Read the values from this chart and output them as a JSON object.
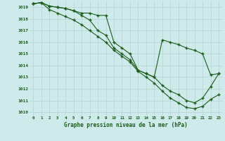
{
  "title": "Graphe pression niveau de la mer (hPa)",
  "background_color": "#ceeaea",
  "grid_color": "#b8d8d8",
  "line_color": "#1a5c1a",
  "x_labels": [
    "0",
    "1",
    "2",
    "3",
    "4",
    "5",
    "6",
    "7",
    "8",
    "9",
    "10",
    "11",
    "12",
    "13",
    "14",
    "15",
    "16",
    "17",
    "18",
    "19",
    "20",
    "21",
    "22",
    "23"
  ],
  "y_min": 1010,
  "y_max": 1019.5,
  "y_ticks": [
    1010,
    1011,
    1012,
    1013,
    1014,
    1015,
    1016,
    1017,
    1018,
    1019
  ],
  "series_top": [
    1019.3,
    1019.4,
    1019.1,
    1019.0,
    1018.9,
    1018.7,
    1018.5,
    1018.5,
    1018.3,
    1018.3,
    1016.0,
    1015.5,
    1015.0,
    1013.6,
    1013.3,
    1013.0,
    1016.2,
    1016.0,
    1015.8,
    1015.5,
    1015.3,
    1015.0,
    1013.2,
    1013.3
  ],
  "series_mid": [
    1019.3,
    1019.4,
    1019.1,
    1019.0,
    1018.9,
    1018.7,
    1018.3,
    1017.9,
    1017.0,
    1016.6,
    1015.5,
    1015.0,
    1014.5,
    1013.6,
    1013.3,
    1013.0,
    1012.3,
    1011.8,
    1011.5,
    1011.0,
    1010.8,
    1011.2,
    1012.2,
    1013.3
  ],
  "series_bot": [
    1019.3,
    1019.4,
    1018.8,
    1018.5,
    1018.2,
    1017.9,
    1017.5,
    1017.0,
    1016.5,
    1016.0,
    1015.3,
    1014.8,
    1014.3,
    1013.5,
    1013.0,
    1012.5,
    1011.8,
    1011.2,
    1010.8,
    1010.4,
    1010.3,
    1010.5,
    1011.1,
    1011.5
  ]
}
